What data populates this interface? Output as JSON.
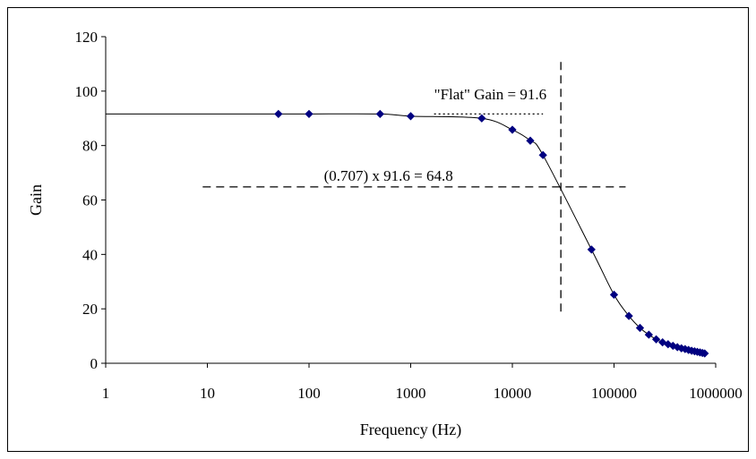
{
  "chart_data": {
    "type": "line",
    "title": "",
    "xlabel": "Frequency (Hz)",
    "ylabel": "Gain",
    "x_scale": "log",
    "xlim": [
      1,
      1000000
    ],
    "ylim": [
      0,
      120
    ],
    "x_ticks": [
      1,
      10,
      100,
      1000,
      10000,
      100000,
      1000000
    ],
    "x_tick_labels": [
      "1",
      "10",
      "100",
      "1000",
      "10000",
      "100000",
      "1000000"
    ],
    "y_ticks": [
      0,
      20,
      40,
      60,
      80,
      100,
      120
    ],
    "y_tick_labels": [
      "0",
      "20",
      "40",
      "60",
      "80",
      "100",
      "120"
    ],
    "grid": false,
    "legend": "none",
    "series": [
      {
        "color": "#000080",
        "marker": "diamond",
        "x": [
          50,
          100,
          500,
          1000,
          5000,
          10000,
          15000,
          20000,
          60000,
          100000,
          140000,
          180000,
          220000,
          260000,
          300000,
          340000,
          380000,
          420000,
          460000,
          500000,
          540000,
          580000,
          620000,
          660000,
          700000,
          740000,
          780000
        ],
        "y": [
          91.6,
          91.6,
          91.6,
          90.8,
          90.0,
          85.8,
          81.8,
          76.5,
          41.8,
          25.2,
          17.4,
          13.0,
          10.5,
          8.8,
          7.7,
          7.0,
          6.4,
          5.9,
          5.5,
          5.2,
          4.9,
          4.6,
          4.4,
          4.2,
          4.0,
          3.8,
          3.6
        ]
      }
    ],
    "curve_start": {
      "x": 1,
      "y": 91.6
    },
    "annotations": [
      {
        "text": "\"Flat\" Gain = 91.6",
        "x": 1700,
        "y": 97,
        "line_style": "dotted",
        "line_x": [
          1700,
          20000
        ],
        "line_y": 91.6
      },
      {
        "text": "(0.707) x 91.6 = 64.8",
        "x": 140,
        "y": 67,
        "line_style": "dashed",
        "line_x": [
          9,
          130000
        ],
        "line_y": 64.8
      },
      {
        "text": "",
        "line_style": "dashed",
        "vertical_x": 30000,
        "vertical_y": [
          19,
          112
        ]
      }
    ]
  }
}
